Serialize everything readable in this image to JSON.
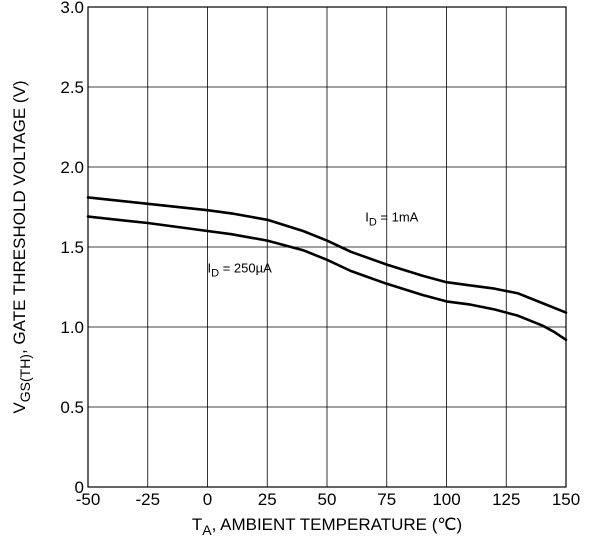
{
  "chart_data": {
    "type": "line",
    "title": "",
    "xlabel": {
      "main": "T",
      "sub": "A",
      "rest": ", AMBIENT TEMPERATURE (℃)"
    },
    "ylabel": {
      "main": "V",
      "sub": "GS(TH)",
      "rest": ", GATE THRESHOLD VOLTAGE (V)"
    },
    "xlim": [
      -50,
      150
    ],
    "ylim": [
      0,
      3.0
    ],
    "xticks": [
      -50,
      -25,
      0,
      25,
      50,
      75,
      100,
      125,
      150
    ],
    "yticks": [
      0,
      0.5,
      1.0,
      1.5,
      2.0,
      2.5,
      3.0
    ],
    "xtick_labels": [
      "-50",
      "-25",
      "0",
      "25",
      "50",
      "75",
      "100",
      "125",
      "150"
    ],
    "ytick_labels": [
      "0",
      "0.5",
      "1.0",
      "1.5",
      "2.0",
      "2.5",
      "3.0"
    ],
    "grid": true,
    "series": [
      {
        "name": "I_D = 1mA",
        "x": [
          -50,
          -25,
          0,
          10,
          25,
          40,
          50,
          60,
          75,
          90,
          100,
          110,
          120,
          130,
          140,
          150
        ],
        "y": [
          1.81,
          1.77,
          1.73,
          1.71,
          1.67,
          1.6,
          1.54,
          1.47,
          1.39,
          1.32,
          1.28,
          1.26,
          1.24,
          1.21,
          1.15,
          1.09
        ]
      },
      {
        "name": "I_D = 250µA",
        "x": [
          -50,
          -25,
          0,
          10,
          25,
          40,
          50,
          60,
          75,
          90,
          100,
          110,
          120,
          130,
          140,
          145,
          150
        ],
        "y": [
          1.69,
          1.65,
          1.6,
          1.58,
          1.54,
          1.48,
          1.42,
          1.35,
          1.27,
          1.2,
          1.16,
          1.14,
          1.11,
          1.07,
          1.01,
          0.97,
          0.92
        ]
      }
    ],
    "annotations": [
      {
        "main": "I",
        "sub": "D",
        "rest": " = 1mA",
        "series": 0
      },
      {
        "main": "I",
        "sub": "D",
        "rest": " = 250µA",
        "series": 1
      }
    ]
  }
}
